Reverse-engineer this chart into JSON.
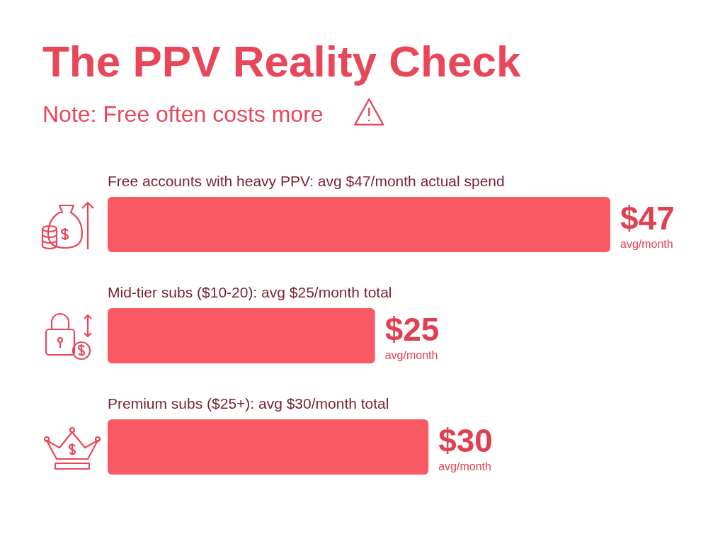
{
  "chart_data": {
    "type": "bar",
    "orientation": "horizontal",
    "title": "The PPV Reality Check",
    "subtitle": "Note: Free often costs more",
    "categories": [
      "Free accounts with heavy PPV: avg $47/month actual spend",
      "Mid-tier subs ($10-20): avg $25/month total",
      "Premium subs ($25+): avg $30/month total"
    ],
    "values": [
      47,
      25,
      30
    ],
    "value_labels": [
      "$47\navg/month",
      "$25\navg/month",
      "$30\navg/month"
    ],
    "color": "#fa5a64"
  }
}
